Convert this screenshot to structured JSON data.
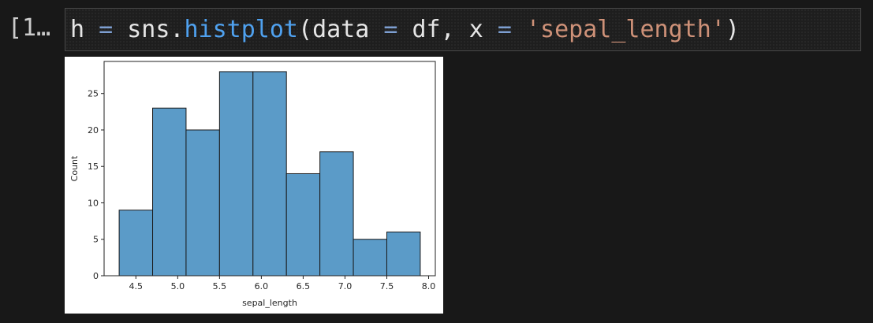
{
  "cell": {
    "execution_count": "[1…",
    "code": {
      "var": "h",
      "eq1": "=",
      "module": "sns.",
      "func": "histplot",
      "open": "(",
      "arg1": "data",
      "eq2": "=",
      "arg1_val": "df,",
      "arg2": "x",
      "eq3": "=",
      "arg2_val": "'sepal_length'",
      "close": ")"
    }
  },
  "chart_data": {
    "type": "bar",
    "title": "",
    "xlabel": "sepal_length",
    "ylabel": "Count",
    "bins": [
      {
        "start": 4.3,
        "end": 4.7,
        "count": 9
      },
      {
        "start": 4.7,
        "end": 5.1,
        "count": 23
      },
      {
        "start": 5.1,
        "end": 5.5,
        "count": 20
      },
      {
        "start": 5.5,
        "end": 5.9,
        "count": 28
      },
      {
        "start": 5.9,
        "end": 6.3,
        "count": 28
      },
      {
        "start": 6.3,
        "end": 6.7,
        "count": 14
      },
      {
        "start": 6.7,
        "end": 7.1,
        "count": 17
      },
      {
        "start": 7.1,
        "end": 7.5,
        "count": 5
      },
      {
        "start": 7.5,
        "end": 7.9,
        "count": 6
      }
    ],
    "xticks": [
      "4.5",
      "5.0",
      "5.5",
      "6.0",
      "6.5",
      "7.0",
      "7.5",
      "8.0"
    ],
    "yticks": [
      "0",
      "5",
      "10",
      "15",
      "20",
      "25"
    ],
    "xlim": [
      4.12,
      8.08
    ],
    "ylim": [
      0,
      29.4
    ],
    "bar_color": "#5b9bc8",
    "edge_color": "#1a1a1a",
    "grid": false,
    "legend": "none"
  }
}
